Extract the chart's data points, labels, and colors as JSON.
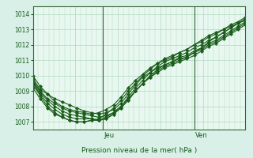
{
  "background_color": "#d8f0e8",
  "plot_bg_color": "#e8f8f0",
  "grid_color": "#b0d8c0",
  "line_color": "#1a5c1a",
  "marker_color": "#1a5c1a",
  "ylabel_ticks": [
    1007,
    1008,
    1009,
    1010,
    1011,
    1012,
    1013,
    1014
  ],
  "ylim": [
    1006.5,
    1014.5
  ],
  "xlabel": "Pression niveau de la mer( hPa )",
  "day_labels": [
    "Jeu",
    "Ven"
  ],
  "day_positions": [
    0.33,
    0.76
  ],
  "series": [
    [
      1009.8,
      1009.1,
      1008.8,
      1008.5,
      1008.3,
      1008.1,
      1007.9,
      1007.7,
      1007.6,
      1007.5,
      1007.6,
      1007.8,
      1008.2,
      1008.8,
      1009.4,
      1009.9,
      1010.2,
      1010.5,
      1010.7,
      1010.9,
      1011.1,
      1011.2,
      1011.5,
      1011.8,
      1012.2,
      1012.5,
      1012.8,
      1013.1,
      1013.4,
      1013.6
    ],
    [
      1009.7,
      1009.0,
      1008.5,
      1008.2,
      1007.9,
      1007.7,
      1007.6,
      1007.5,
      1007.4,
      1007.3,
      1007.4,
      1007.6,
      1008.0,
      1008.5,
      1009.0,
      1009.5,
      1009.9,
      1010.2,
      1010.5,
      1010.7,
      1010.9,
      1011.1,
      1011.3,
      1011.6,
      1011.9,
      1012.1,
      1012.4,
      1012.7,
      1013.0,
      1013.3
    ],
    [
      1009.6,
      1008.9,
      1008.4,
      1008.0,
      1007.7,
      1007.5,
      1007.4,
      1007.3,
      1007.2,
      1007.1,
      1007.2,
      1007.5,
      1007.9,
      1008.4,
      1009.0,
      1009.5,
      1009.9,
      1010.3,
      1010.6,
      1010.8,
      1011.0,
      1011.2,
      1011.5,
      1011.7,
      1012.0,
      1012.2,
      1012.5,
      1012.8,
      1013.1,
      1013.4
    ],
    [
      1009.5,
      1008.8,
      1008.2,
      1007.8,
      1007.5,
      1007.3,
      1007.2,
      1007.2,
      1007.2,
      1007.1,
      1007.2,
      1007.5,
      1007.9,
      1008.4,
      1009.0,
      1009.5,
      1010.0,
      1010.4,
      1010.7,
      1010.9,
      1011.2,
      1011.3,
      1011.6,
      1011.8,
      1012.1,
      1012.3,
      1012.6,
      1012.9,
      1013.2,
      1013.5
    ],
    [
      1009.4,
      1008.7,
      1008.0,
      1007.6,
      1007.3,
      1007.1,
      1007.0,
      1007.0,
      1007.1,
      1007.1,
      1007.3,
      1007.6,
      1008.0,
      1008.6,
      1009.2,
      1009.7,
      1010.2,
      1010.6,
      1010.9,
      1011.1,
      1011.3,
      1011.5,
      1011.8,
      1012.0,
      1012.3,
      1012.5,
      1012.8,
      1013.1,
      1013.4,
      1013.7
    ],
    [
      1009.2,
      1008.5,
      1007.9,
      1007.5,
      1007.3,
      1007.1,
      1007.0,
      1007.0,
      1007.1,
      1007.2,
      1007.5,
      1007.9,
      1008.4,
      1009.0,
      1009.5,
      1010.0,
      1010.4,
      1010.8,
      1011.1,
      1011.3,
      1011.5,
      1011.7,
      1012.0,
      1012.2,
      1012.5,
      1012.7,
      1013.0,
      1013.3,
      1013.5,
      1013.8
    ],
    [
      1010.0,
      1009.3,
      1008.8,
      1008.3,
      1008.0,
      1007.8,
      1007.7,
      1007.6,
      1007.5,
      1007.6,
      1007.8,
      1008.1,
      1008.6,
      1009.2,
      1009.7,
      1010.1,
      1010.5,
      1010.8,
      1011.0,
      1011.2,
      1011.5,
      1011.7,
      1012.0,
      1012.3,
      1012.6,
      1012.8,
      1013.0,
      1013.2,
      1013.4,
      1013.6
    ]
  ]
}
